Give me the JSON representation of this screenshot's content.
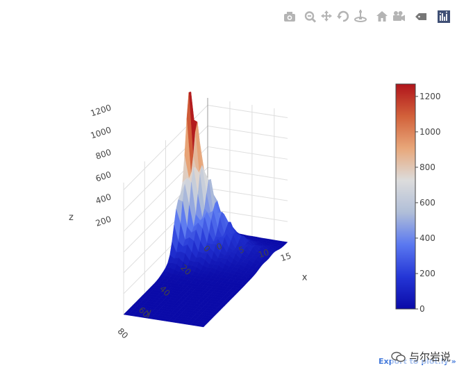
{
  "modebar": {
    "buttons": [
      {
        "name": "camera-icon",
        "title": "Download plot as a png"
      },
      {
        "name": "zoom-icon",
        "title": "Zoom"
      },
      {
        "name": "pan-icon",
        "title": "Pan"
      },
      {
        "name": "orbit-rotation-icon",
        "title": "Orbital rotation"
      },
      {
        "name": "turntable-rotation-icon",
        "title": "Turntable rotation"
      },
      {
        "name": "home-icon",
        "title": "Reset camera to default"
      },
      {
        "name": "video-camera-icon",
        "title": "Reset camera to last save"
      },
      {
        "name": "tag-icon",
        "title": "Toggle show closest data on hover"
      },
      {
        "name": "plotly-logo-icon",
        "title": "Produced with Plotly"
      }
    ],
    "icon_color": "#b4b4b4",
    "logo_color": "#3f4f75"
  },
  "chart_data": {
    "type": "surface",
    "title": "",
    "axes": {
      "x": {
        "label": "x",
        "ticks": [
          0,
          5,
          10,
          15
        ],
        "range": [
          0,
          18
        ]
      },
      "y": {
        "label": "y",
        "ticks": [
          0,
          20,
          40,
          60,
          80
        ],
        "tick_labels": [
          "0",
          "20",
          "40",
          "60",
          "80"
        ],
        "range": [
          0,
          80
        ]
      },
      "z": {
        "label": "z",
        "ticks": [
          0,
          200,
          400,
          600,
          800,
          1000,
          1200
        ],
        "range": [
          0,
          1270
        ]
      }
    },
    "peak": {
      "x": 0,
      "y": 16,
      "z": 1270
    },
    "surface_shape": {
      "decay_x": 5.0,
      "decay_y_before": 6,
      "decay_y_after": 9.5,
      "ripple_amplitude": 0.22,
      "grid_x": 19,
      "grid_y": 41
    },
    "colorbar": {
      "colorscale": [
        "#0a0aa8",
        "#2436d6",
        "#5a78f0",
        "#b0bed8",
        "#dcdcdc",
        "#e8a77a",
        "#d2613a",
        "#b0141b"
      ],
      "ticks": [
        0,
        200,
        400,
        600,
        800,
        1000,
        1200
      ],
      "range": [
        0,
        1270
      ]
    },
    "grid": true,
    "legend": "none"
  },
  "export_link": "Export to plot.ly »",
  "watermark": "与尔岩说"
}
